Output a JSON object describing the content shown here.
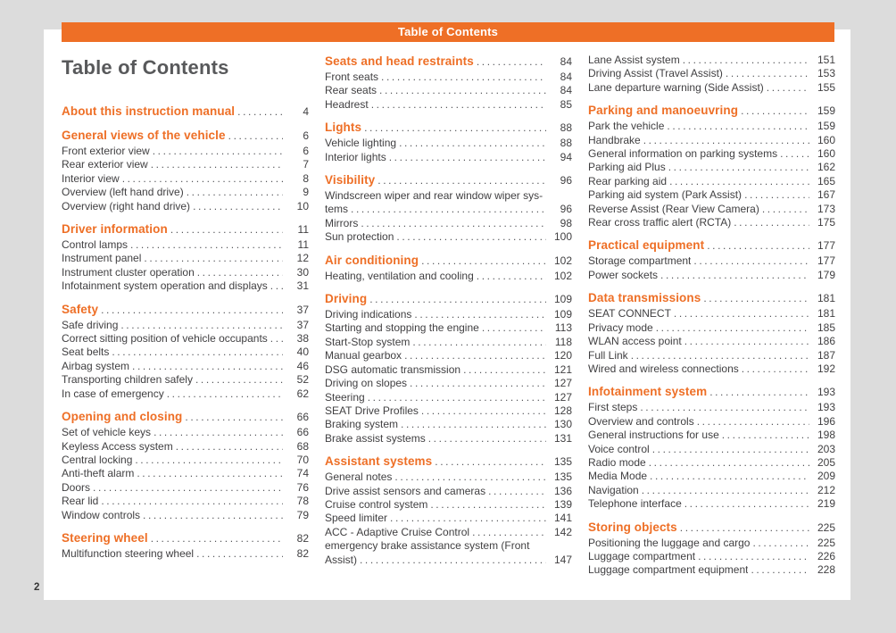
{
  "header_bar": {
    "label": "Table of Contents"
  },
  "page_title": "Table of Contents",
  "footer": {
    "page_number": "2"
  },
  "colors": {
    "accent_orange": "#ee6f26",
    "title_gray": "#58595b",
    "body_text": "#414042",
    "page_background": "#ffffff",
    "outer_background": "#dcdcdc"
  },
  "columns": [
    {
      "sections": [
        {
          "heading": {
            "label": "About this instruction manual",
            "page": "4"
          },
          "entries": []
        },
        {
          "heading": {
            "label": "General views of the vehicle",
            "page": "6"
          },
          "entries": [
            {
              "label": "Front exterior view",
              "page": "6"
            },
            {
              "label": "Rear exterior view",
              "page": "7"
            },
            {
              "label": "Interior view",
              "page": "8"
            },
            {
              "label": "Overview (left hand drive)",
              "page": "9"
            },
            {
              "label": "Overview (right hand drive)",
              "page": "10"
            }
          ]
        },
        {
          "heading": {
            "label": "Driver information",
            "page": "11"
          },
          "entries": [
            {
              "label": "Control lamps",
              "page": "11"
            },
            {
              "label": "Instrument panel",
              "page": "12"
            },
            {
              "label": "Instrument cluster operation",
              "page": "30"
            },
            {
              "label": "Infotainment system operation and displays",
              "page": "31"
            }
          ]
        },
        {
          "heading": {
            "label": "Safety",
            "page": "37"
          },
          "entries": [
            {
              "label": "Safe driving",
              "page": "37"
            },
            {
              "label": "Correct sitting position of vehicle occupants",
              "page": "38"
            },
            {
              "label": "Seat belts",
              "page": "40"
            },
            {
              "label": "Airbag system",
              "page": "46"
            },
            {
              "label": "Transporting children safely",
              "page": "52"
            },
            {
              "label": "In case of emergency",
              "page": "62"
            }
          ]
        },
        {
          "heading": {
            "label": "Opening and closing",
            "page": "66"
          },
          "entries": [
            {
              "label": "Set of vehicle keys",
              "page": "66"
            },
            {
              "label": "Keyless Access system",
              "page": "68"
            },
            {
              "label": "Central locking",
              "page": "70"
            },
            {
              "label": "Anti-theft alarm",
              "page": "74"
            },
            {
              "label": "Doors",
              "page": "76"
            },
            {
              "label": "Rear lid",
              "page": "78"
            },
            {
              "label": "Window controls",
              "page": "79"
            }
          ]
        },
        {
          "heading": {
            "label": "Steering wheel",
            "page": "82"
          },
          "entries": [
            {
              "label": "Multifunction steering wheel",
              "page": "82"
            }
          ]
        }
      ]
    },
    {
      "sections": [
        {
          "heading": {
            "label": "Seats and head restraints",
            "page": "84"
          },
          "entries": [
            {
              "label": "Front seats",
              "page": "84"
            },
            {
              "label": "Rear seats",
              "page": "84"
            },
            {
              "label": "Headrest",
              "page": "85"
            }
          ]
        },
        {
          "heading": {
            "label": "Lights",
            "page": "88"
          },
          "entries": [
            {
              "label": "Vehicle lighting",
              "page": "88"
            },
            {
              "label": "Interior lights",
              "page": "94"
            }
          ]
        },
        {
          "heading": {
            "label": "Visibility",
            "page": "96"
          },
          "entries": [
            {
              "wrap": "Windscreen wiper and rear window wiper sys-",
              "label": "tems",
              "page": "96"
            },
            {
              "label": "Mirrors",
              "page": "98"
            },
            {
              "label": "Sun protection",
              "page": "100"
            }
          ]
        },
        {
          "heading": {
            "label": "Air conditioning",
            "page": "102"
          },
          "entries": [
            {
              "label": "Heating, ventilation and cooling",
              "page": "102"
            }
          ]
        },
        {
          "heading": {
            "label": "Driving",
            "page": "109"
          },
          "entries": [
            {
              "label": "Driving indications",
              "page": "109"
            },
            {
              "label": "Starting and stopping the engine",
              "page": "113"
            },
            {
              "label": "Start-Stop system",
              "page": "118"
            },
            {
              "label": "Manual gearbox",
              "page": "120"
            },
            {
              "label": "DSG automatic transmission",
              "page": "121"
            },
            {
              "label": "Driving on slopes",
              "page": "127"
            },
            {
              "label": "Steering",
              "page": "127"
            },
            {
              "label": "SEAT Drive Profiles",
              "page": "128"
            },
            {
              "label": "Braking system",
              "page": "130"
            },
            {
              "label": "Brake assist systems",
              "page": "131"
            }
          ]
        },
        {
          "heading": {
            "label": "Assistant systems",
            "page": "135"
          },
          "entries": [
            {
              "label": "General notes",
              "page": "135"
            },
            {
              "label": "Drive assist sensors and cameras",
              "page": "136"
            },
            {
              "label": "Cruise control system",
              "page": "139"
            },
            {
              "label": "Speed limiter",
              "page": "141"
            },
            {
              "label": "ACC - Adaptive Cruise Control",
              "page": "142"
            },
            {
              "wrap": "emergency brake assistance system (Front",
              "label": "Assist)",
              "page": "147"
            }
          ]
        }
      ]
    },
    {
      "sections": [
        {
          "heading": null,
          "entries": [
            {
              "label": "Lane Assist system",
              "page": "151"
            },
            {
              "label": "Driving Assist (Travel Assist)",
              "page": "153"
            },
            {
              "label": "Lane departure warning (Side Assist)",
              "page": "155"
            }
          ]
        },
        {
          "heading": {
            "label": "Parking and manoeuvring",
            "page": "159"
          },
          "entries": [
            {
              "label": "Park the vehicle",
              "page": "159"
            },
            {
              "label": "Handbrake",
              "page": "160"
            },
            {
              "label": "General information on parking systems",
              "page": "160"
            },
            {
              "label": "Parking aid Plus",
              "page": "162"
            },
            {
              "label": "Rear parking aid",
              "page": "165"
            },
            {
              "label": "Parking aid system (Park Assist)",
              "page": "167"
            },
            {
              "label": "Reverse Assist (Rear View Camera)",
              "page": "173"
            },
            {
              "label": "Rear cross traffic alert (RCTA)",
              "page": "175"
            }
          ]
        },
        {
          "heading": {
            "label": "Practical equipment",
            "page": "177"
          },
          "entries": [
            {
              "label": "Storage compartment",
              "page": "177"
            },
            {
              "label": "Power sockets",
              "page": "179"
            }
          ]
        },
        {
          "heading": {
            "label": "Data transmissions",
            "page": "181"
          },
          "entries": [
            {
              "label": "SEAT CONNECT",
              "page": "181"
            },
            {
              "label": "Privacy mode",
              "page": "185"
            },
            {
              "label": "WLAN access point",
              "page": "186"
            },
            {
              "label": "Full Link",
              "page": "187"
            },
            {
              "label": "Wired and wireless connections",
              "page": "192"
            }
          ]
        },
        {
          "heading": {
            "label": "Infotainment system",
            "page": "193"
          },
          "entries": [
            {
              "label": "First steps",
              "page": "193"
            },
            {
              "label": "Overview and controls",
              "page": "196"
            },
            {
              "label": "General instructions for use",
              "page": "198"
            },
            {
              "label": "Voice control",
              "page": "203"
            },
            {
              "label": "Radio mode",
              "page": "205"
            },
            {
              "label": "Media Mode",
              "page": "209"
            },
            {
              "label": "Navigation",
              "page": "212"
            },
            {
              "label": "Telephone interface",
              "page": "219"
            }
          ]
        },
        {
          "heading": {
            "label": "Storing objects",
            "page": "225"
          },
          "entries": [
            {
              "label": "Positioning the luggage and cargo",
              "page": "225"
            },
            {
              "label": "Luggage compartment",
              "page": "226"
            },
            {
              "label": "Luggage compartment equipment",
              "page": "228"
            }
          ]
        }
      ]
    }
  ]
}
